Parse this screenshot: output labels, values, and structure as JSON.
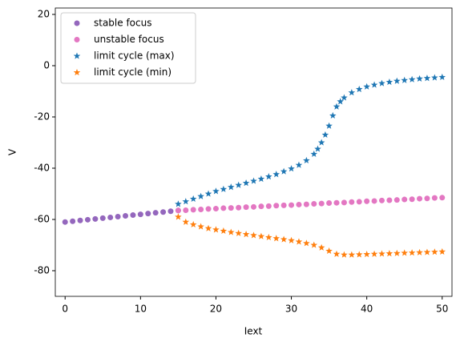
{
  "chart_data": {
    "type": "scatter",
    "xlabel": "Iext",
    "ylabel": "V",
    "xlim": [
      -1.3,
      51.3
    ],
    "ylim": [
      -90,
      22.5
    ],
    "xticks": [
      0,
      10,
      20,
      30,
      40,
      50
    ],
    "yticks": [
      -80,
      -60,
      -40,
      -20,
      0,
      20
    ],
    "legend": "upper left",
    "series": [
      {
        "name": "stable focus",
        "color": "#9467bd",
        "marker": "circle",
        "x": [
          0,
          1,
          2,
          3,
          4,
          5,
          6,
          7,
          8,
          9,
          10,
          11,
          12,
          13,
          14,
          15
        ],
        "values": [
          -61,
          -60.7,
          -60.4,
          -60.1,
          -59.8,
          -59.5,
          -59.2,
          -58.9,
          -58.6,
          -58.3,
          -58,
          -57.7,
          -57.4,
          -57.1,
          -56.8,
          -56.5
        ]
      },
      {
        "name": "unstable focus",
        "color": "#e377c2",
        "marker": "circle",
        "x": [
          15,
          16,
          17,
          18,
          19,
          20,
          21,
          22,
          23,
          24,
          25,
          26,
          27,
          28,
          29,
          30,
          31,
          32,
          33,
          34,
          35,
          36,
          37,
          38,
          39,
          40,
          41,
          42,
          43,
          44,
          45,
          46,
          47,
          48,
          49,
          50
        ],
        "values": [
          -56.5,
          -56.4,
          -56.2,
          -56.1,
          -55.9,
          -55.8,
          -55.6,
          -55.5,
          -55.4,
          -55.2,
          -55.1,
          -54.9,
          -54.8,
          -54.6,
          -54.5,
          -54.4,
          -54.2,
          -54.1,
          -53.9,
          -53.8,
          -53.6,
          -53.5,
          -53.4,
          -53.2,
          -53.1,
          -52.9,
          -52.8,
          -52.6,
          -52.5,
          -52.4,
          -52.2,
          -52.1,
          -51.9,
          -51.8,
          -51.6,
          -51.5
        ]
      },
      {
        "name": "limit cycle (max)",
        "color": "#1f77b4",
        "marker": "star",
        "x": [
          15,
          16,
          17,
          18,
          19,
          20,
          21,
          22,
          23,
          24,
          25,
          26,
          27,
          28,
          29,
          30,
          31,
          32,
          33,
          33.5,
          34,
          34.5,
          35,
          35.5,
          36,
          36.5,
          37,
          38,
          39,
          40,
          41,
          42,
          43,
          44,
          45,
          46,
          47,
          48,
          49,
          50
        ],
        "values": [
          -54,
          -53,
          -52,
          -51,
          -50,
          -49,
          -48.2,
          -47.4,
          -46.6,
          -45.8,
          -45,
          -44.2,
          -43.3,
          -42.4,
          -41.3,
          -40.2,
          -38.8,
          -37,
          -34.5,
          -32.5,
          -30,
          -27,
          -23.5,
          -19.5,
          -16,
          -14,
          -12.5,
          -10.5,
          -9.2,
          -8.2,
          -7.5,
          -6.9,
          -6.4,
          -6,
          -5.7,
          -5.4,
          -5.1,
          -4.9,
          -4.7,
          -4.5
        ]
      },
      {
        "name": "limit cycle (min)",
        "color": "#ff7f0e",
        "marker": "star",
        "x": [
          15,
          16,
          17,
          18,
          19,
          20,
          21,
          22,
          23,
          24,
          25,
          26,
          27,
          28,
          29,
          30,
          31,
          32,
          33,
          34,
          35,
          36,
          37,
          38,
          39,
          40,
          41,
          42,
          43,
          44,
          45,
          46,
          47,
          48,
          49,
          50
        ],
        "values": [
          -59,
          -61,
          -62,
          -62.8,
          -63.5,
          -64,
          -64.5,
          -65,
          -65.4,
          -65.8,
          -66.2,
          -66.6,
          -67,
          -67.4,
          -67.8,
          -68.2,
          -68.7,
          -69.3,
          -70,
          -71,
          -72.3,
          -73.5,
          -73.8,
          -73.8,
          -73.7,
          -73.6,
          -73.5,
          -73.4,
          -73.3,
          -73.2,
          -73.1,
          -73,
          -72.9,
          -72.8,
          -72.7,
          -72.6
        ]
      }
    ]
  }
}
